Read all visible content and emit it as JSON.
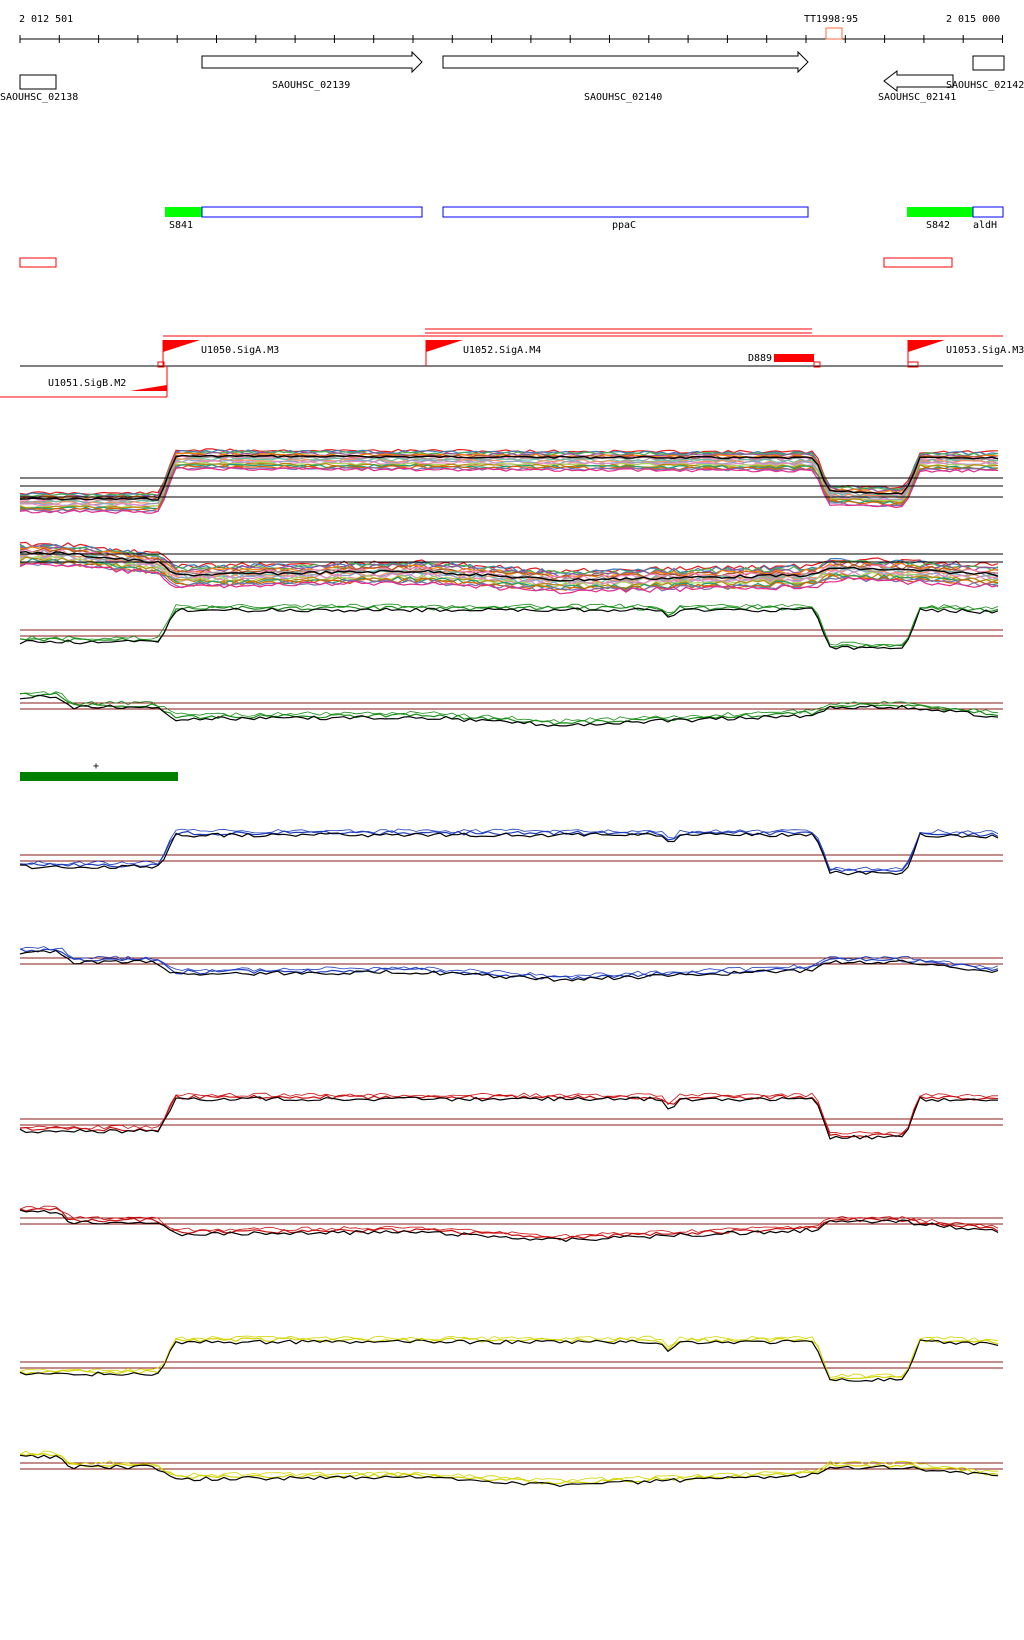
{
  "ruler": {
    "start_label": "2 012 501",
    "end_label": "2 015 000",
    "terminator_label": "TT1998:95"
  },
  "genes": [
    {
      "label": "SAOUHSC_02138",
      "strand": "none"
    },
    {
      "label": "SAOUHSC_02139",
      "strand": "+"
    },
    {
      "label": "SAOUHSC_02140",
      "strand": "+"
    },
    {
      "label": "SAOUHSC_02141",
      "strand": "-"
    },
    {
      "label": "SAOUHSC_02142",
      "strand": "none"
    }
  ],
  "annotations": {
    "green_features": [
      "S841",
      "S842"
    ],
    "blue_features": [
      "ppaC",
      "aldH"
    ]
  },
  "promoters": [
    {
      "label": "U1050.SigA.M3"
    },
    {
      "label": "U1052.SigA.M4"
    },
    {
      "label": "U1053.SigA.M3"
    },
    {
      "label": "U1051.SigB.M2"
    }
  ],
  "misc": {
    "d_label": "D889",
    "plus_mark": "+"
  },
  "colors": {
    "gene_outline": "#000000",
    "green_feature": "#00ff00",
    "blue_feature": "#0000ff",
    "red": "#ff0000",
    "threshold_line": "#8b1a1a",
    "dark_green_bar": "#008000",
    "blue_track": "#1f3fbf",
    "red_track": "#cc1111",
    "yellow_track": "#d4d400"
  }
}
